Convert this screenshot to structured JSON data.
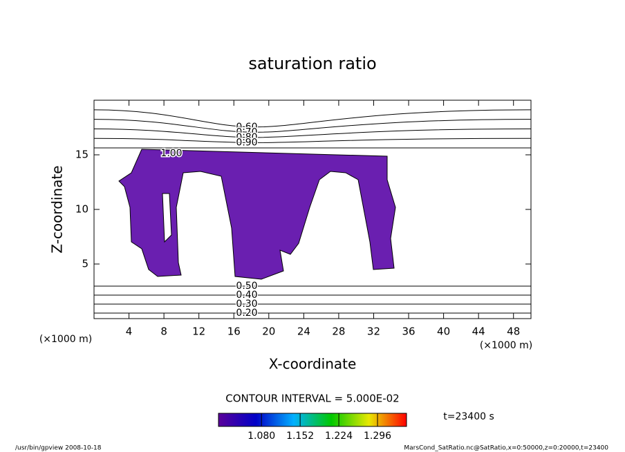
{
  "chart_data": {
    "type": "contour",
    "title": "saturation ratio",
    "x_label": "X-coordinate",
    "y_label": "Z-coordinate",
    "x_unit": "(×1000 m)",
    "y_unit": "(×1000 m)",
    "xlim": [
      0,
      50
    ],
    "xticks": [
      4,
      8,
      12,
      16,
      20,
      24,
      28,
      32,
      36,
      40,
      44,
      48
    ],
    "ylim": [
      0,
      20
    ],
    "yticks": [
      5,
      10,
      15
    ],
    "contour_levels": [
      {
        "value": 0.6,
        "label": "0.60"
      },
      {
        "value": 0.7,
        "label": "0.70"
      },
      {
        "value": 0.8,
        "label": "0.80"
      },
      {
        "value": 0.9,
        "label": "0.90"
      },
      {
        "value": 1.0,
        "label": "1.00"
      },
      {
        "value": 0.2,
        "label": "0.20"
      },
      {
        "value": 0.3,
        "label": "0.30"
      },
      {
        "value": 0.4,
        "label": "0.40"
      },
      {
        "value": 0.5,
        "label": "0.50"
      }
    ],
    "contour_interval": "CONTOUR INTERVAL = 5.000E-02",
    "shade_color": "#6a1fb0",
    "colorbar_lim": [
      1.0,
      1.35
    ],
    "colorbar_ticks": [
      {
        "value": 1.08,
        "label": "1.080"
      },
      {
        "value": 1.152,
        "label": "1.152"
      },
      {
        "value": 1.224,
        "label": "1.224"
      },
      {
        "value": 1.296,
        "label": "1.296"
      }
    ],
    "colormap": [
      "#5a009a",
      "#0000c8",
      "#00b0ff",
      "#00c800",
      "#e8e800",
      "#ff0000"
    ],
    "time_label": "t=23400 s",
    "footer_left": "/usr/bin/gpview  2008-10-18",
    "footer_right": "MarsCond_SatRatio.nc@SatRatio,x=0:50000,z=0:20000,t=23400"
  }
}
